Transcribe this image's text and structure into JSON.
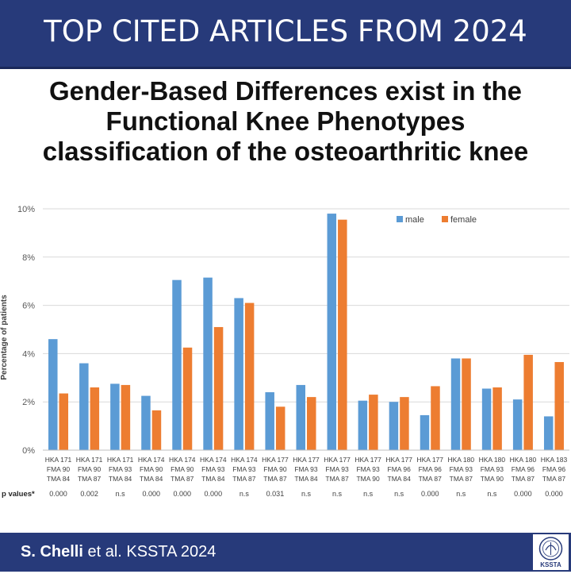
{
  "banner": {
    "title": "TOP CITED ARTICLES FROM 2024"
  },
  "headline": {
    "line1": "Gender-Based Differences exist in the",
    "line2": "Functional Knee Phenotypes",
    "line3": "classification of the osteoarthritic knee"
  },
  "footer": {
    "author": "S. Chelli",
    "rest": " et al. KSSTA 2024"
  },
  "logo": {
    "text": "KSSTA"
  },
  "colors": {
    "male": "#5b9bd5",
    "female": "#ed7d31",
    "banner": "#273a7a"
  },
  "chart_data": {
    "type": "bar",
    "title": "",
    "xlabel": "",
    "ylabel": "Percentage of patients",
    "ylim": [
      0,
      10
    ],
    "yticks": [
      "0%",
      "2%",
      "4%",
      "6%",
      "8%",
      "10%"
    ],
    "grid": true,
    "legend_position": "top-right",
    "categories": [
      [
        "HKA 171",
        "FMA 90",
        "TMA 84"
      ],
      [
        "HKA 171",
        "FMA 90",
        "TMA 87"
      ],
      [
        "HKA 171",
        "FMA 93",
        "TMA 84"
      ],
      [
        "HKA 174",
        "FMA 90",
        "TMA 84"
      ],
      [
        "HKA 174",
        "FMA 90",
        "TMA 87"
      ],
      [
        "HKA 174",
        "FMA 93",
        "TMA 84"
      ],
      [
        "HKA 174",
        "FMA 93",
        "TMA 87"
      ],
      [
        "HKA 177",
        "FMA 90",
        "TMA 87"
      ],
      [
        "HKA 177",
        "FMA 93",
        "TMA 84"
      ],
      [
        "HKA 177",
        "FMA 93",
        "TMA 87"
      ],
      [
        "HKA 177",
        "FMA 93",
        "TMA 90"
      ],
      [
        "HKA 177",
        "FMA 96",
        "TMA 84"
      ],
      [
        "HKA 177",
        "FMA 96",
        "TMA 87"
      ],
      [
        "HKA 180",
        "FMA 93",
        "TMA 87"
      ],
      [
        "HKA 180",
        "FMA 93",
        "TMA 90"
      ],
      [
        "HKA 180",
        "FMA 96",
        "TMA 87"
      ],
      [
        "HKA 183",
        "FMA 96",
        "TMA 87"
      ]
    ],
    "series": [
      {
        "name": "male",
        "values": [
          4.6,
          3.6,
          2.75,
          2.25,
          7.05,
          7.15,
          6.3,
          2.4,
          2.7,
          9.8,
          2.05,
          2.0,
          1.45,
          3.8,
          2.55,
          2.1,
          1.4
        ]
      },
      {
        "name": "female",
        "values": [
          2.35,
          2.6,
          2.7,
          1.65,
          4.25,
          5.1,
          6.1,
          1.8,
          2.2,
          9.55,
          2.3,
          2.2,
          2.65,
          3.8,
          2.6,
          3.95,
          3.65
        ]
      }
    ],
    "p_values_label": "p values*",
    "p_values": [
      "0.000",
      "0.002",
      "n.s",
      "0.000",
      "0.000",
      "0.000",
      "n.s",
      "0.031",
      "n.s",
      "n.s",
      "n.s",
      "n.s",
      "0.000",
      "n.s",
      "n.s",
      "0.000",
      "0.000"
    ]
  }
}
